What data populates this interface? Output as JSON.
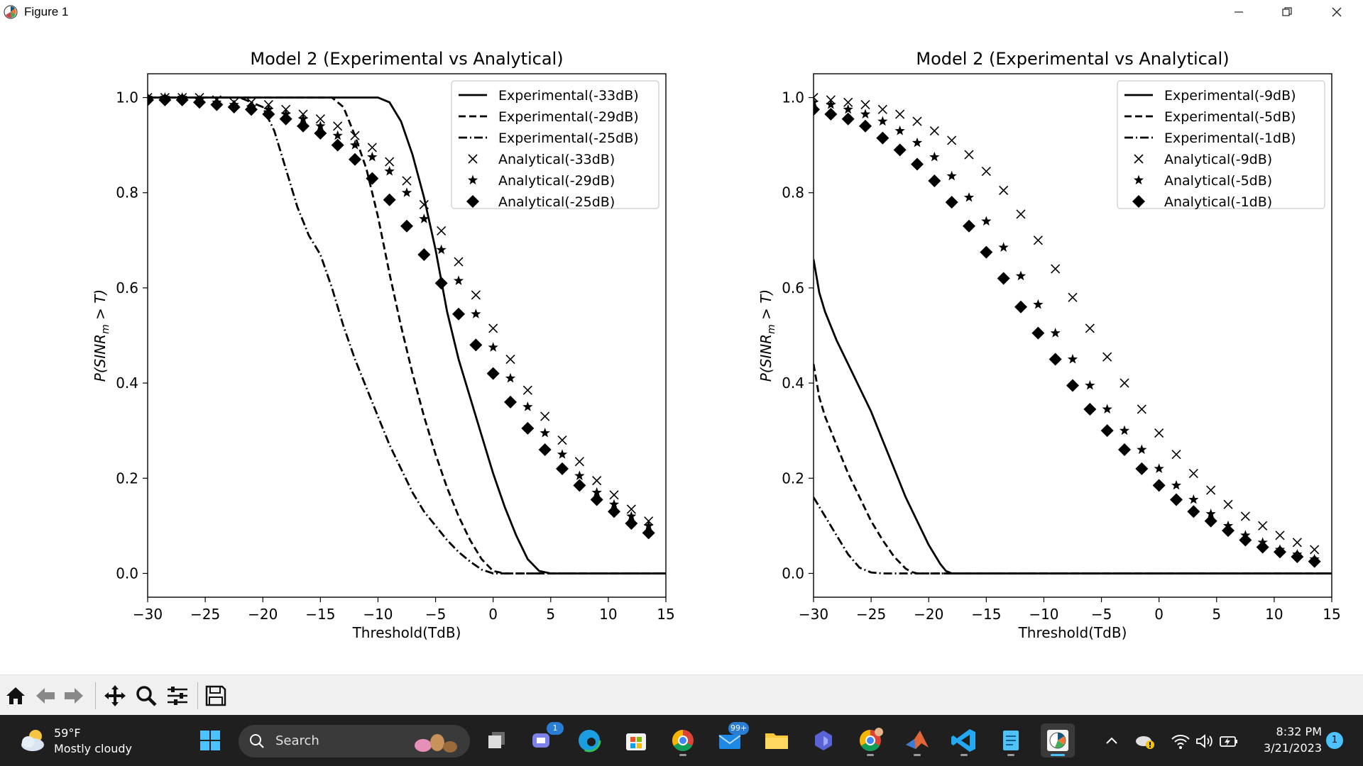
{
  "window": {
    "title": "Figure 1",
    "controls": [
      "minimize",
      "restore",
      "close"
    ]
  },
  "chart_data": [
    {
      "type": "line",
      "title": "Model 2 (Experimental vs Analytical)",
      "xlabel": "Threshold(TdB)",
      "ylabel_prefix": "P(SINR",
      "ylabel_sub": "m",
      "ylabel_suffix": " > T)",
      "xlim": [
        -30,
        15
      ],
      "ylim": [
        -0.05,
        1.05
      ],
      "xticks": [
        -30,
        -25,
        -20,
        -15,
        -10,
        -5,
        0,
        5,
        10,
        15
      ],
      "xtick_labels": [
        "−30",
        "−25",
        "−20",
        "−15",
        "−10",
        "−5",
        "0",
        "5",
        "10",
        "15"
      ],
      "yticks": [
        0.0,
        0.2,
        0.4,
        0.6,
        0.8,
        1.0
      ],
      "ytick_labels": [
        "0.0",
        "0.2",
        "0.4",
        "0.6",
        "0.8",
        "1.0"
      ],
      "grid": false,
      "legend_position": "top-right",
      "series": [
        {
          "name": "Experimental(-33dB)",
          "style": "solid",
          "x": [
            -30,
            -10,
            -9,
            -8,
            -7,
            -6,
            -5,
            -4,
            -3,
            -2,
            -1,
            0,
            1,
            2,
            3,
            4,
            5,
            15
          ],
          "y": [
            1.0,
            1.0,
            0.99,
            0.95,
            0.88,
            0.79,
            0.68,
            0.55,
            0.45,
            0.37,
            0.29,
            0.21,
            0.14,
            0.08,
            0.03,
            0.005,
            0.0,
            0.0
          ]
        },
        {
          "name": "Experimental(-29dB)",
          "style": "dashed",
          "x": [
            -30,
            -14,
            -13,
            -12,
            -11,
            -10,
            -9,
            -8,
            -7,
            -6,
            -5,
            -4,
            -3,
            -2,
            -1,
            0,
            1,
            15
          ],
          "y": [
            1.0,
            1.0,
            0.98,
            0.92,
            0.85,
            0.75,
            0.63,
            0.52,
            0.42,
            0.33,
            0.25,
            0.18,
            0.12,
            0.07,
            0.03,
            0.005,
            0.0,
            0.0
          ]
        },
        {
          "name": "Experimental(-25dB)",
          "style": "dashdot",
          "x": [
            -30,
            -22,
            -20,
            -19,
            -18,
            -17,
            -16,
            -15,
            -14,
            -13,
            -12,
            -11,
            -10,
            -9,
            -8,
            -7,
            -6,
            -5,
            -4,
            -3,
            -2,
            -1,
            0,
            1,
            15
          ],
          "y": [
            1.0,
            1.0,
            0.98,
            0.93,
            0.85,
            0.77,
            0.71,
            0.67,
            0.6,
            0.52,
            0.45,
            0.39,
            0.33,
            0.27,
            0.22,
            0.17,
            0.13,
            0.1,
            0.07,
            0.045,
            0.025,
            0.008,
            0.0,
            0.0,
            0.0
          ]
        },
        {
          "name": "Analytical(-33dB)",
          "marker": "x",
          "x": [
            -30,
            -28.5,
            -27,
            -25.5,
            -24,
            -22.5,
            -21,
            -19.5,
            -18,
            -16.5,
            -15,
            -13.5,
            -12,
            -10.5,
            -9,
            -7.5,
            -6,
            -4.5,
            -3,
            -1.5,
            0,
            1.5,
            3,
            4.5,
            6,
            7.5,
            9,
            10.5,
            12,
            13.5
          ],
          "y": [
            1.0,
            1.0,
            1.0,
            1.0,
            0.995,
            0.99,
            0.99,
            0.985,
            0.975,
            0.965,
            0.955,
            0.94,
            0.92,
            0.895,
            0.865,
            0.825,
            0.775,
            0.72,
            0.655,
            0.585,
            0.515,
            0.45,
            0.385,
            0.33,
            0.28,
            0.235,
            0.195,
            0.165,
            0.135,
            0.11
          ]
        },
        {
          "name": "Analytical(-29dB)",
          "marker": "star",
          "x": [
            -30,
            -28.5,
            -27,
            -25.5,
            -24,
            -22.5,
            -21,
            -19.5,
            -18,
            -16.5,
            -15,
            -13.5,
            -12,
            -10.5,
            -9,
            -7.5,
            -6,
            -4.5,
            -3,
            -1.5,
            0,
            1.5,
            3,
            4.5,
            6,
            7.5,
            9,
            10.5,
            12,
            13.5
          ],
          "y": [
            1.0,
            1.0,
            1.0,
            0.995,
            0.99,
            0.985,
            0.98,
            0.975,
            0.965,
            0.955,
            0.94,
            0.92,
            0.9,
            0.875,
            0.845,
            0.8,
            0.745,
            0.68,
            0.615,
            0.545,
            0.475,
            0.41,
            0.35,
            0.295,
            0.25,
            0.205,
            0.17,
            0.145,
            0.12,
            0.1
          ]
        },
        {
          "name": "Analytical(-25dB)",
          "marker": "diamond",
          "x": [
            -30,
            -28.5,
            -27,
            -25.5,
            -24,
            -22.5,
            -21,
            -19.5,
            -18,
            -16.5,
            -15,
            -13.5,
            -12,
            -10.5,
            -9,
            -7.5,
            -6,
            -4.5,
            -3,
            -1.5,
            0,
            1.5,
            3,
            4.5,
            6,
            7.5,
            9,
            10.5,
            12,
            13.5
          ],
          "y": [
            0.995,
            0.995,
            0.995,
            0.99,
            0.985,
            0.98,
            0.975,
            0.965,
            0.955,
            0.94,
            0.925,
            0.9,
            0.87,
            0.83,
            0.785,
            0.73,
            0.67,
            0.61,
            0.545,
            0.48,
            0.42,
            0.36,
            0.305,
            0.26,
            0.22,
            0.185,
            0.155,
            0.13,
            0.105,
            0.085
          ]
        }
      ]
    },
    {
      "type": "line",
      "title": "Model 2 (Experimental vs Analytical)",
      "xlabel": "Threshold(TdB)",
      "ylabel_prefix": "P(SINR",
      "ylabel_sub": "m",
      "ylabel_suffix": " > T)",
      "xlim": [
        -30,
        15
      ],
      "ylim": [
        -0.05,
        1.05
      ],
      "xticks": [
        -30,
        -25,
        -20,
        -15,
        -10,
        -5,
        0,
        5,
        10,
        15
      ],
      "xtick_labels": [
        "−30",
        "−25",
        "−20",
        "−15",
        "−10",
        "−5",
        "0",
        "5",
        "10",
        "15"
      ],
      "yticks": [
        0.0,
        0.2,
        0.4,
        0.6,
        0.8,
        1.0
      ],
      "ytick_labels": [
        "0.0",
        "0.2",
        "0.4",
        "0.6",
        "0.8",
        "1.0"
      ],
      "grid": false,
      "legend_position": "top-right",
      "series": [
        {
          "name": "Experimental(-9dB)",
          "style": "solid",
          "x": [
            -30,
            -29.5,
            -29,
            -28,
            -27,
            -26,
            -25,
            -24,
            -23,
            -22,
            -21,
            -20,
            -19,
            -18.5,
            -18,
            15
          ],
          "y": [
            0.66,
            0.59,
            0.55,
            0.49,
            0.44,
            0.39,
            0.34,
            0.28,
            0.22,
            0.16,
            0.11,
            0.06,
            0.02,
            0.005,
            0.0,
            0.0
          ]
        },
        {
          "name": "Experimental(-5dB)",
          "style": "dashed",
          "x": [
            -30,
            -29.5,
            -29,
            -28,
            -27,
            -26,
            -25,
            -24,
            -23,
            -22,
            -21.5,
            -21,
            15
          ],
          "y": [
            0.44,
            0.37,
            0.33,
            0.27,
            0.21,
            0.16,
            0.11,
            0.07,
            0.035,
            0.01,
            0.003,
            0.0,
            0.0
          ]
        },
        {
          "name": "Experimental(-1dB)",
          "style": "dashdot",
          "x": [
            -30,
            -29,
            -28,
            -27,
            -26,
            -25,
            -24,
            -23,
            15
          ],
          "y": [
            0.16,
            0.12,
            0.08,
            0.04,
            0.012,
            0.002,
            0.0,
            0.0,
            0.0
          ]
        },
        {
          "name": "Analytical(-9dB)",
          "marker": "x",
          "x": [
            -30,
            -28.5,
            -27,
            -25.5,
            -24,
            -22.5,
            -21,
            -19.5,
            -18,
            -16.5,
            -15,
            -13.5,
            -12,
            -10.5,
            -9,
            -7.5,
            -6,
            -4.5,
            -3,
            -1.5,
            0,
            1.5,
            3,
            4.5,
            6,
            7.5,
            9,
            10.5,
            12,
            13.5
          ],
          "y": [
            1.0,
            0.995,
            0.99,
            0.985,
            0.975,
            0.965,
            0.95,
            0.93,
            0.91,
            0.88,
            0.845,
            0.805,
            0.755,
            0.7,
            0.64,
            0.58,
            0.515,
            0.455,
            0.4,
            0.345,
            0.295,
            0.25,
            0.21,
            0.175,
            0.145,
            0.12,
            0.1,
            0.08,
            0.065,
            0.05
          ]
        },
        {
          "name": "Analytical(-5dB)",
          "marker": "star",
          "x": [
            -30,
            -28.5,
            -27,
            -25.5,
            -24,
            -22.5,
            -21,
            -19.5,
            -18,
            -16.5,
            -15,
            -13.5,
            -12,
            -10.5,
            -9,
            -7.5,
            -6,
            -4.5,
            -3,
            -1.5,
            0,
            1.5,
            3,
            4.5,
            6,
            7.5,
            9,
            10.5,
            12,
            13.5
          ],
          "y": [
            0.99,
            0.985,
            0.975,
            0.965,
            0.95,
            0.93,
            0.905,
            0.875,
            0.835,
            0.79,
            0.74,
            0.685,
            0.625,
            0.565,
            0.505,
            0.45,
            0.395,
            0.345,
            0.3,
            0.26,
            0.22,
            0.185,
            0.155,
            0.125,
            0.1,
            0.08,
            0.065,
            0.05,
            0.04,
            0.03
          ]
        },
        {
          "name": "Analytical(-1dB)",
          "marker": "diamond",
          "x": [
            -30,
            -28.5,
            -27,
            -25.5,
            -24,
            -22.5,
            -21,
            -19.5,
            -18,
            -16.5,
            -15,
            -13.5,
            -12,
            -10.5,
            -9,
            -7.5,
            -6,
            -4.5,
            -3,
            -1.5,
            0,
            1.5,
            3,
            4.5,
            6,
            7.5,
            9,
            10.5,
            12,
            13.5
          ],
          "y": [
            0.975,
            0.965,
            0.955,
            0.94,
            0.915,
            0.89,
            0.86,
            0.825,
            0.78,
            0.73,
            0.675,
            0.62,
            0.56,
            0.505,
            0.45,
            0.395,
            0.345,
            0.3,
            0.26,
            0.22,
            0.185,
            0.155,
            0.13,
            0.11,
            0.09,
            0.07,
            0.055,
            0.045,
            0.035,
            0.025
          ]
        }
      ]
    }
  ],
  "toolbar": {
    "buttons": [
      "home-icon",
      "back-arrow-icon",
      "forward-arrow-icon",
      "pan-icon",
      "zoom-icon",
      "configure-subplots-icon",
      "save-icon"
    ]
  },
  "taskbar": {
    "weather_temp": "59°F",
    "weather_desc": "Mostly cloudy",
    "search_placeholder": "Search",
    "teams_badge": "1",
    "mail_badge": "99+",
    "time": "8:32 PM",
    "date": "3/21/2023",
    "notification_count": "1",
    "colors": {
      "accent": "#4cc2ff",
      "bar": "#1f1f1f"
    }
  }
}
